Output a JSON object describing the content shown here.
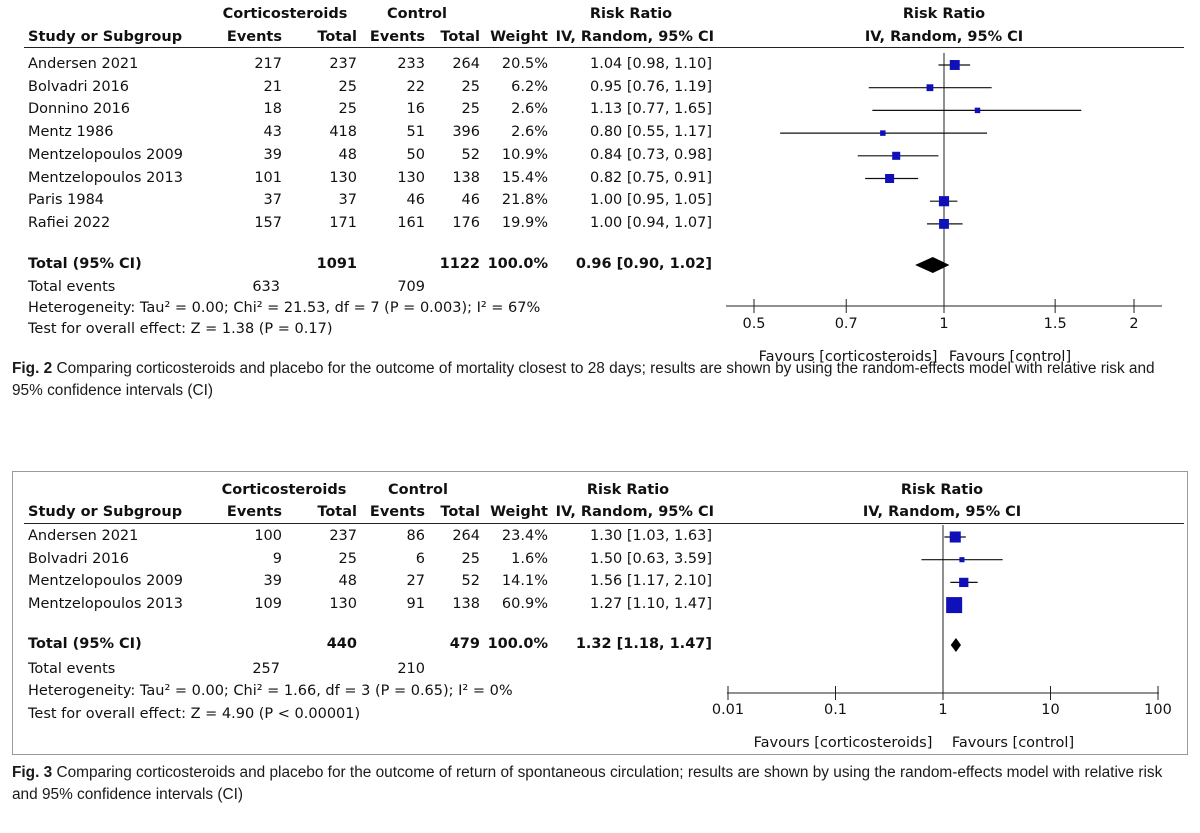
{
  "figures": [
    {
      "group_header": {
        "treat": "Corticosteroids",
        "ctrl": "Control",
        "rr": "Risk Ratio",
        "plot": "Risk Ratio"
      },
      "col_header": {
        "study": "Study or Subgroup",
        "t_events": "Events",
        "t_total": "Total",
        "c_events": "Events",
        "c_total": "Total",
        "weight": "Weight",
        "rr": "IV, Random, 95% CI",
        "plot": "IV, Random, 95% CI"
      },
      "rows": [
        {
          "study": "Andersen 2021",
          "te": "217",
          "tt": "237",
          "ce": "233",
          "ct": "264",
          "w": "20.5%",
          "rr": "1.04 [0.98, 1.10]"
        },
        {
          "study": "Bolvadri 2016",
          "te": "21",
          "tt": "25",
          "ce": "22",
          "ct": "25",
          "w": "6.2%",
          "rr": "0.95 [0.76, 1.19]"
        },
        {
          "study": "Donnino 2016",
          "te": "18",
          "tt": "25",
          "ce": "16",
          "ct": "25",
          "w": "2.6%",
          "rr": "1.13 [0.77, 1.65]"
        },
        {
          "study": "Mentz 1986",
          "te": "43",
          "tt": "418",
          "ce": "51",
          "ct": "396",
          "w": "2.6%",
          "rr": "0.80 [0.55, 1.17]"
        },
        {
          "study": "Mentzelopoulos 2009",
          "te": "39",
          "tt": "48",
          "ce": "50",
          "ct": "52",
          "w": "10.9%",
          "rr": "0.84 [0.73, 0.98]"
        },
        {
          "study": "Mentzelopoulos 2013",
          "te": "101",
          "tt": "130",
          "ce": "130",
          "ct": "138",
          "w": "15.4%",
          "rr": "0.82 [0.75, 0.91]"
        },
        {
          "study": "Paris 1984",
          "te": "37",
          "tt": "37",
          "ce": "46",
          "ct": "46",
          "w": "21.8%",
          "rr": "1.00 [0.95, 1.05]"
        },
        {
          "study": "Rafiei 2022",
          "te": "157",
          "tt": "171",
          "ce": "161",
          "ct": "176",
          "w": "19.9%",
          "rr": "1.00 [0.94, 1.07]"
        }
      ],
      "total": {
        "label": "Total (95% CI)",
        "tt": "1091",
        "ct": "1122",
        "w": "100.0%",
        "rr": "0.96 [0.90, 1.02]"
      },
      "total_events": {
        "label": "Total events",
        "te": "633",
        "ce": "709"
      },
      "heterogeneity": "Heterogeneity: Tau² = 0.00; Chi² = 21.53, df = 7 (P = 0.003); I² = 67%",
      "overall": "Test for overall effect: Z = 1.38 (P = 0.17)",
      "favours_left": "Favours [corticosteroids]",
      "favours_right": "Favours [control]",
      "caption_label": "Fig. 2",
      "caption_text": "Comparing corticosteroids and placebo for the outcome of mortality closest to 28 days; results are shown by using the random-effects model with relative risk and 95% confidence intervals (CI)"
    },
    {
      "group_header": {
        "treat": "Corticosteroids",
        "ctrl": "Control",
        "rr": "Risk Ratio",
        "plot": "Risk Ratio"
      },
      "col_header": {
        "study": "Study or Subgroup",
        "t_events": "Events",
        "t_total": "Total",
        "c_events": "Events",
        "c_total": "Total",
        "weight": "Weight",
        "rr": "IV, Random, 95% CI",
        "plot": "IV, Random, 95% CI"
      },
      "rows": [
        {
          "study": "Andersen 2021",
          "te": "100",
          "tt": "237",
          "ce": "86",
          "ct": "264",
          "w": "23.4%",
          "rr": "1.30 [1.03, 1.63]"
        },
        {
          "study": "Bolvadri 2016",
          "te": "9",
          "tt": "25",
          "ce": "6",
          "ct": "25",
          "w": "1.6%",
          "rr": "1.50 [0.63, 3.59]"
        },
        {
          "study": "Mentzelopoulos 2009",
          "te": "39",
          "tt": "48",
          "ce": "27",
          "ct": "52",
          "w": "14.1%",
          "rr": "1.56 [1.17, 2.10]"
        },
        {
          "study": "Mentzelopoulos 2013",
          "te": "109",
          "tt": "130",
          "ce": "91",
          "ct": "138",
          "w": "60.9%",
          "rr": "1.27 [1.10, 1.47]"
        }
      ],
      "total": {
        "label": "Total (95% CI)",
        "tt": "440",
        "ct": "479",
        "w": "100.0%",
        "rr": "1.32 [1.18, 1.47]"
      },
      "total_events": {
        "label": "Total events",
        "te": "257",
        "ce": "210"
      },
      "heterogeneity": "Heterogeneity: Tau² = 0.00; Chi² = 1.66, df = 3 (P = 0.65); I² = 0%",
      "overall": "Test for overall effect: Z = 4.90 (P < 0.00001)",
      "favours_left": "Favours [corticosteroids]",
      "favours_right": "Favours [control]",
      "caption_label": "Fig. 3",
      "caption_text": "Comparing corticosteroids and placebo for the outcome of return of spontaneous circulation; results are shown by using the random-effects model with relative risk and 95% confidence intervals (CI)"
    }
  ],
  "chart_data": [
    {
      "type": "forest",
      "scale": "log",
      "xlim": [
        0.5,
        2
      ],
      "xticks": [
        0.5,
        0.7,
        1,
        1.5,
        2
      ],
      "xtick_labels": [
        "0.5",
        "0.7",
        "1",
        "1.5",
        "2"
      ],
      "null_line": 1,
      "marker_color": "#1010b8",
      "studies": [
        {
          "name": "Andersen 2021",
          "est": 1.04,
          "lo": 0.98,
          "hi": 1.1,
          "weight": 20.5
        },
        {
          "name": "Bolvadri 2016",
          "est": 0.95,
          "lo": 0.76,
          "hi": 1.19,
          "weight": 6.2
        },
        {
          "name": "Donnino 2016",
          "est": 1.13,
          "lo": 0.77,
          "hi": 1.65,
          "weight": 2.6
        },
        {
          "name": "Mentz 1986",
          "est": 0.8,
          "lo": 0.55,
          "hi": 1.17,
          "weight": 2.6
        },
        {
          "name": "Mentzelopoulos 2009",
          "est": 0.84,
          "lo": 0.73,
          "hi": 0.98,
          "weight": 10.9
        },
        {
          "name": "Mentzelopoulos 2013",
          "est": 0.82,
          "lo": 0.75,
          "hi": 0.91,
          "weight": 15.4
        },
        {
          "name": "Paris 1984",
          "est": 1.0,
          "lo": 0.95,
          "hi": 1.05,
          "weight": 21.8
        },
        {
          "name": "Rafiei 2022",
          "est": 1.0,
          "lo": 0.94,
          "hi": 1.07,
          "weight": 19.9
        }
      ],
      "pooled": {
        "est": 0.96,
        "lo": 0.9,
        "hi": 1.02
      }
    },
    {
      "type": "forest",
      "scale": "log",
      "xlim": [
        0.01,
        100
      ],
      "xticks": [
        0.01,
        0.1,
        1,
        10,
        100
      ],
      "xtick_labels": [
        "0.01",
        "0.1",
        "1",
        "10",
        "100"
      ],
      "null_line": 1,
      "marker_color": "#1010b8",
      "studies": [
        {
          "name": "Andersen 2021",
          "est": 1.3,
          "lo": 1.03,
          "hi": 1.63,
          "weight": 23.4
        },
        {
          "name": "Bolvadri 2016",
          "est": 1.5,
          "lo": 0.63,
          "hi": 3.59,
          "weight": 1.6
        },
        {
          "name": "Mentzelopoulos 2009",
          "est": 1.56,
          "lo": 1.17,
          "hi": 2.1,
          "weight": 14.1
        },
        {
          "name": "Mentzelopoulos 2013",
          "est": 1.27,
          "lo": 1.1,
          "hi": 1.47,
          "weight": 60.9
        }
      ],
      "pooled": {
        "est": 1.32,
        "lo": 1.18,
        "hi": 1.47
      }
    }
  ]
}
